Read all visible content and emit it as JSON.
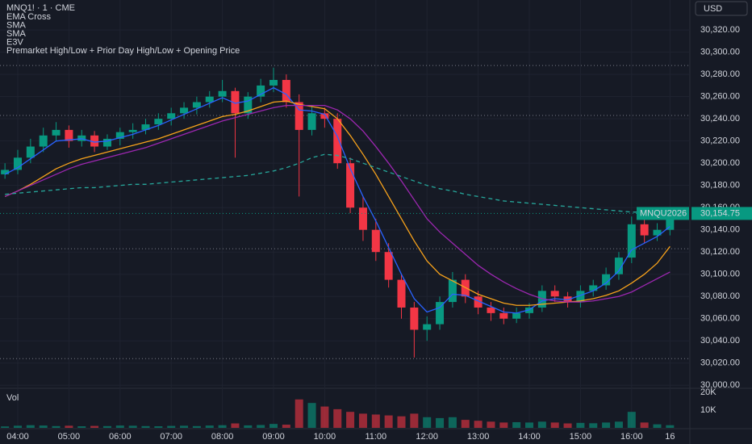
{
  "header": {
    "symbol": "MNQ1! · 1 · CME",
    "currency": "USD"
  },
  "chart_data": [
    {
      "type": "candlestick",
      "categories": [
        null,
        "04:00",
        null,
        null,
        null,
        "05:00",
        null,
        null,
        null,
        "06:00",
        null,
        null,
        null,
        "07:00",
        null,
        null,
        null,
        "08:00",
        null,
        null,
        null,
        "09:00",
        null,
        null,
        null,
        "10:00",
        null,
        null,
        null,
        "11:00",
        null,
        null,
        null,
        "12:00",
        null,
        null,
        null,
        "13:00",
        null,
        null,
        null,
        "14:00",
        null,
        null,
        null,
        "15:00",
        null,
        null,
        null,
        "16:00",
        null,
        null,
        "16"
      ],
      "open": [
        30190,
        30194,
        30205,
        30215,
        30225,
        30230,
        30220,
        30225,
        30215,
        30222,
        30228,
        30230,
        30235,
        30240,
        30245,
        30250,
        30255,
        30260,
        30265,
        30245,
        30260,
        30270,
        30275,
        30255,
        30230,
        30245,
        30240,
        30200,
        30160,
        30140,
        30120,
        30095,
        30070,
        30050,
        30055,
        30075,
        30095,
        30080,
        30070,
        30065,
        30060,
        30065,
        30070,
        30085,
        30080,
        30075,
        30085,
        30090,
        30100,
        30115,
        30145,
        30135,
        30140
      ],
      "high": [
        30200,
        30212,
        30222,
        30232,
        30237,
        30234,
        30230,
        30229,
        30226,
        30232,
        30236,
        30240,
        30245,
        30250,
        30255,
        30260,
        30265,
        30275,
        30268,
        30264,
        30276,
        30286,
        30280,
        30262,
        30252,
        30250,
        30245,
        30205,
        30170,
        30150,
        30128,
        30100,
        30075,
        30062,
        30080,
        30102,
        30100,
        30085,
        30075,
        30070,
        30070,
        30074,
        30090,
        30090,
        30084,
        30090,
        30095,
        30106,
        30120,
        30152,
        30150,
        30146,
        30158
      ],
      "low": [
        30186,
        30190,
        30200,
        30210,
        30220,
        30214,
        30215,
        30210,
        30212,
        30216,
        30222,
        30226,
        30230,
        30234,
        30240,
        30244,
        30250,
        30255,
        30205,
        30240,
        30255,
        30264,
        30250,
        30170,
        30225,
        30232,
        30195,
        30155,
        30130,
        30112,
        30088,
        30060,
        30025,
        30040,
        30050,
        30070,
        30074,
        30064,
        30058,
        30055,
        30056,
        30060,
        30066,
        30075,
        30070,
        30070,
        30080,
        30086,
        30095,
        30110,
        30128,
        30130,
        30135
      ],
      "close": [
        30194,
        30205,
        30215,
        30225,
        30230,
        30220,
        30225,
        30215,
        30222,
        30228,
        30230,
        30235,
        30240,
        30245,
        30250,
        30255,
        30260,
        30265,
        30245,
        30260,
        30270,
        30275,
        30255,
        30230,
        30245,
        30240,
        30200,
        30160,
        30140,
        30120,
        30095,
        30070,
        30050,
        30055,
        30075,
        30095,
        30080,
        30070,
        30065,
        30060,
        30065,
        30070,
        30085,
        30080,
        30075,
        30085,
        30090,
        30100,
        30115,
        30145,
        30135,
        30140,
        30154.75
      ],
      "up_color": "#089981",
      "down_color": "#f23645",
      "series": [
        {
          "name": "EMA Cross",
          "color": "#2962ff",
          "values": [
            30190,
            30196,
            30204,
            30212,
            30220,
            30221,
            30222,
            30219,
            30220,
            30223,
            30226,
            30230,
            30234,
            30239,
            30244,
            30249,
            30254,
            30259,
            30254,
            30256,
            30262,
            30268,
            30262,
            30248,
            30247,
            30244,
            30224,
            30195,
            30170,
            30148,
            30124,
            30100,
            30078,
            30066,
            30070,
            30082,
            30081,
            30076,
            30071,
            30066,
            30065,
            30068,
            30076,
            30078,
            30077,
            30081,
            30085,
            30092,
            30103,
            30122,
            30128,
            30134,
            30143
          ]
        },
        {
          "name": "SMA",
          "color": "#f7a21b",
          "values": [
            30170,
            30175,
            30181,
            30188,
            30195,
            30200,
            30204,
            30207,
            30210,
            30213,
            30216,
            30219,
            30222,
            30226,
            30230,
            30234,
            30238,
            30242,
            30244,
            30247,
            30251,
            30255,
            30256,
            30253,
            30251,
            30249,
            30240,
            30225,
            30208,
            30190,
            30170,
            30150,
            30130,
            30112,
            30100,
            30094,
            30088,
            30082,
            30078,
            30074,
            30072,
            30072,
            30073,
            30074,
            30075,
            30076,
            30078,
            30081,
            30085,
            30092,
            30100,
            30110,
            30125
          ]
        },
        {
          "name": "SMA",
          "color": "#9c27b0",
          "values": [
            30170,
            30175,
            30180,
            30185,
            30190,
            30195,
            30199,
            30202,
            30205,
            30208,
            30211,
            30214,
            30218,
            30222,
            30226,
            30230,
            30234,
            30238,
            30241,
            30244,
            30247,
            30250,
            30252,
            30252,
            30252,
            30252,
            30248,
            30240,
            30229,
            30215,
            30200,
            30184,
            30167,
            30150,
            30138,
            30128,
            30118,
            30108,
            30100,
            30093,
            30087,
            30082,
            30078,
            30076,
            30075,
            30075,
            30076,
            30078,
            30080,
            30084,
            30090,
            30096,
            30102
          ]
        },
        {
          "name": "E3V",
          "color": "#26a69a",
          "dashed": true,
          "values": [
            30172,
            30173,
            30174,
            30175,
            30176,
            30177,
            30178,
            30178,
            30179,
            30180,
            30181,
            30181,
            30182,
            30183,
            30184,
            30185,
            30186,
            30187,
            30188,
            30189,
            30191,
            30193,
            30196,
            30200,
            30205,
            30208,
            30207,
            30204,
            30200,
            30196,
            30192,
            30188,
            30184,
            30180,
            30177,
            30175,
            30172,
            30170,
            30168,
            30166,
            30165,
            30164,
            30163,
            30162,
            30161,
            30160,
            30159,
            30158,
            30157,
            30156,
            30156,
            30155,
            30155
          ]
        }
      ],
      "levels": {
        "name": "Premarket High/Low + Prior Day High/Low + Opening Price",
        "color": "#787b86",
        "values": [
          30288,
          30243,
          30123,
          30024
        ]
      },
      "contract": "MNQU2026",
      "last_label": "30,154.75",
      "last_color": "#089981",
      "ylim": [
        29998,
        30347
      ],
      "yticks": [
        {
          "value": 30000,
          "label": "30,000.00"
        },
        {
          "value": 30020,
          "label": "30,020.00"
        },
        {
          "value": 30040,
          "label": "30,040.00"
        },
        {
          "value": 30060,
          "label": "30,060.00"
        },
        {
          "value": 30080,
          "label": "30,080.00"
        },
        {
          "value": 30100,
          "label": "30,100.00"
        },
        {
          "value": 30120,
          "label": "30,120.00"
        },
        {
          "value": 30140,
          "label": "30,140.00"
        },
        {
          "value": 30160,
          "label": "30,160.00"
        },
        {
          "value": 30180,
          "label": "30,180.00"
        },
        {
          "value": 30200,
          "label": "30,200.00"
        },
        {
          "value": 30220,
          "label": "30,220.00"
        },
        {
          "value": 30240,
          "label": "30,240.00"
        },
        {
          "value": 30260,
          "label": "30,260.00"
        },
        {
          "value": 30280,
          "label": "30,280.00"
        },
        {
          "value": 30300,
          "label": "30,300.00"
        },
        {
          "value": 30320,
          "label": "30,320.00"
        }
      ]
    },
    {
      "type": "bar",
      "title": "Vol",
      "values": [
        800,
        1200,
        1500,
        1300,
        1000,
        1200,
        900,
        1100,
        1000,
        1300,
        1200,
        1000,
        900,
        1100,
        1200,
        1000,
        1300,
        1500,
        2500,
        1400,
        1600,
        2200,
        1800,
        16000,
        14000,
        12000,
        10500,
        9000,
        8000,
        7500,
        7000,
        6500,
        8000,
        6000,
        5500,
        6000,
        4500,
        4000,
        3500,
        3000,
        3200,
        3000,
        3500,
        3000,
        2500,
        2800,
        2600,
        3000,
        3500,
        9000,
        3000,
        2000,
        1500
      ],
      "ylim": [
        0,
        21800
      ],
      "yticks": [
        {
          "value": 10000,
          "label": "10K"
        },
        {
          "value": 20000,
          "label": "20K"
        }
      ]
    }
  ]
}
